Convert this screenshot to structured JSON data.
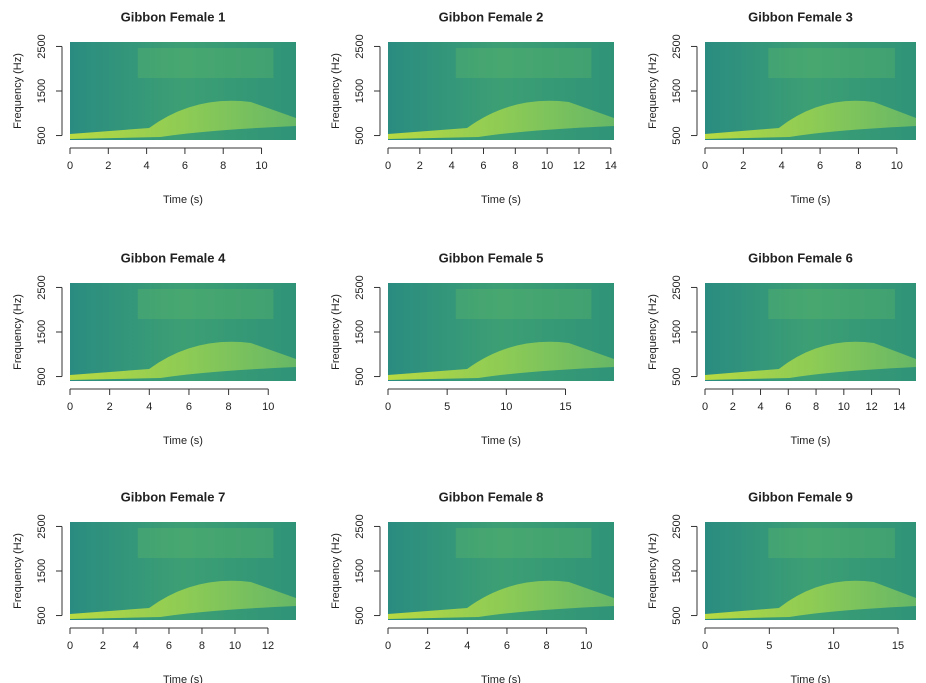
{
  "chart_data": [
    {
      "type": "spectrogram",
      "title": "Gibbon Female 1",
      "xlabel": "Time (s)",
      "ylabel": "Frequency (Hz)",
      "xlim": [
        0,
        11.8
      ],
      "xticks": [
        0,
        2,
        4,
        6,
        8,
        10
      ],
      "ylim": [
        400,
        2600
      ],
      "yticks": [
        500,
        1500,
        2500
      ]
    },
    {
      "type": "spectrogram",
      "title": "Gibbon Female 2",
      "xlabel": "Time (s)",
      "ylabel": "Frequency (Hz)",
      "xlim": [
        0,
        14.2
      ],
      "xticks": [
        0,
        2,
        4,
        6,
        8,
        10,
        12,
        14
      ],
      "ylim": [
        400,
        2600
      ],
      "yticks": [
        500,
        1500,
        2500
      ]
    },
    {
      "type": "spectrogram",
      "title": "Gibbon Female 3",
      "xlabel": "Time (s)",
      "ylabel": "Frequency (Hz)",
      "xlim": [
        0,
        11
      ],
      "xticks": [
        0,
        2,
        4,
        6,
        8,
        10
      ],
      "ylim": [
        400,
        2600
      ],
      "yticks": [
        500,
        1500,
        2500
      ]
    },
    {
      "type": "spectrogram",
      "title": "Gibbon Female 4",
      "xlabel": "Time (s)",
      "ylabel": "Frequency (Hz)",
      "xlim": [
        0,
        11.4
      ],
      "xticks": [
        0,
        2,
        4,
        6,
        8,
        10
      ],
      "ylim": [
        400,
        2600
      ],
      "yticks": [
        500,
        1500,
        2500
      ]
    },
    {
      "type": "spectrogram",
      "title": "Gibbon Female 5",
      "xlabel": "Time (s)",
      "ylabel": "Frequency (Hz)",
      "xlim": [
        0,
        19.1
      ],
      "xticks": [
        0,
        5,
        10,
        15
      ],
      "ylim": [
        400,
        2600
      ],
      "yticks": [
        500,
        1500,
        2500
      ]
    },
    {
      "type": "spectrogram",
      "title": "Gibbon Female 6",
      "xlabel": "Time (s)",
      "ylabel": "Frequency (Hz)",
      "xlim": [
        0,
        15.2
      ],
      "xticks": [
        0,
        2,
        4,
        6,
        8,
        10,
        12,
        14
      ],
      "ylim": [
        400,
        2600
      ],
      "yticks": [
        500,
        1500,
        2500
      ]
    },
    {
      "type": "spectrogram",
      "title": "Gibbon Female 7",
      "xlabel": "Time (s)",
      "ylabel": "Frequency (Hz)",
      "xlim": [
        0,
        13.7
      ],
      "xticks": [
        0,
        2,
        4,
        6,
        8,
        10,
        12
      ],
      "ylim": [
        400,
        2600
      ],
      "yticks": [
        500,
        1500,
        2500
      ]
    },
    {
      "type": "spectrogram",
      "title": "Gibbon Female 8",
      "xlabel": "Time (s)",
      "ylabel": "Frequency (Hz)",
      "xlim": [
        0,
        11.4
      ],
      "xticks": [
        0,
        2,
        4,
        6,
        8,
        10
      ],
      "ylim": [
        400,
        2600
      ],
      "yticks": [
        500,
        1500,
        2500
      ]
    },
    {
      "type": "spectrogram",
      "title": "Gibbon Female 9",
      "xlabel": "Time (s)",
      "ylabel": "Frequency (Hz)",
      "xlim": [
        0,
        16.4
      ],
      "xticks": [
        0,
        5,
        10,
        15
      ],
      "ylim": [
        400,
        2600
      ],
      "yticks": [
        500,
        1500,
        2500
      ]
    }
  ]
}
